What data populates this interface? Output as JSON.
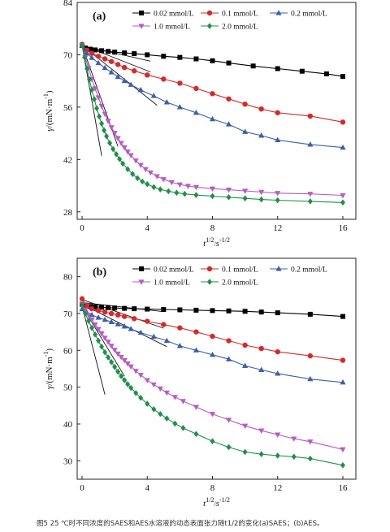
{
  "figure": {
    "caption": "图5 25 ℃时不同浓度的SAES和AES水溶液的动态表面张力随t1/2的变化(a)SAES；(b)AES。"
  },
  "chart_data": [
    {
      "type": "line",
      "panel_label": "(a)",
      "xlabel": "t1/2/s-1/2",
      "ylabel": "γ/(mN·m-1)",
      "xlim": [
        -0.3,
        16.8
      ],
      "ylim": [
        26,
        84
      ],
      "xticks": [
        0,
        4,
        8,
        12,
        16
      ],
      "yticks": [
        28,
        42,
        56,
        70,
        84
      ],
      "legend_position": "top",
      "series": [
        {
          "name": "0.02 mmol/L",
          "color": "#000000",
          "marker": "square",
          "x": [
            0,
            0.2,
            0.5,
            0.8,
            1.2,
            1.6,
            2.0,
            2.6,
            3.2,
            4.0,
            5.0,
            6.0,
            7.0,
            8.0,
            9.0,
            10.5,
            12.0,
            13.5,
            15.0,
            16.0
          ],
          "y": [
            72.5,
            71.8,
            71.5,
            71.3,
            71.1,
            70.9,
            70.7,
            70.5,
            70.3,
            70.0,
            69.6,
            69.3,
            68.9,
            68.4,
            67.8,
            67.0,
            66.3,
            65.6,
            64.9,
            64.2
          ]
        },
        {
          "name": "0.1 mmol/L",
          "color": "#d42a2a",
          "marker": "circle",
          "x": [
            0,
            0.3,
            0.6,
            1.0,
            1.4,
            1.8,
            2.2,
            2.6,
            3.2,
            4.0,
            5.0,
            6.0,
            7.0,
            8.0,
            9.0,
            10.0,
            11.0,
            12.0,
            14.0,
            16.0
          ],
          "y": [
            72.8,
            71.2,
            70.4,
            69.6,
            68.9,
            68.2,
            67.4,
            66.6,
            65.7,
            64.6,
            63.5,
            62.4,
            61.0,
            59.6,
            58.2,
            56.8,
            55.5,
            54.5,
            53.6,
            52.0
          ]
        },
        {
          "name": "0.2 mmol/L",
          "color": "#3e5fa8",
          "marker": "triangle-up",
          "x": [
            0,
            0.3,
            0.6,
            1.0,
            1.4,
            1.8,
            2.2,
            2.6,
            3.0,
            3.6,
            4.4,
            5.2,
            6.0,
            7.0,
            8.0,
            9.0,
            10.0,
            11.0,
            12.0,
            14.0,
            16.0
          ],
          "y": [
            72.5,
            70.4,
            69.2,
            67.8,
            66.5,
            65.3,
            64.1,
            63.0,
            62.0,
            60.6,
            59.0,
            57.3,
            56.0,
            54.5,
            52.8,
            51.4,
            49.4,
            48.4,
            47.2,
            46.0,
            45.2
          ]
        },
        {
          "name": "1.0 mmol/L",
          "color": "#b65cc3",
          "marker": "triangle-down",
          "x": [
            0,
            0.2,
            0.4,
            0.6,
            0.8,
            1.0,
            1.2,
            1.4,
            1.6,
            1.8,
            2.0,
            2.2,
            2.4,
            2.6,
            2.8,
            3.0,
            3.3,
            3.6,
            3.9,
            4.2,
            4.6,
            5.0,
            5.5,
            6.0,
            6.5,
            7.0,
            8.0,
            9.0,
            10.0,
            11.0,
            12.0,
            14.0,
            16.0
          ],
          "y": [
            72.5,
            69.3,
            66.4,
            63.5,
            61.0,
            58.6,
            56.3,
            54.2,
            52.3,
            50.6,
            49.1,
            47.7,
            46.4,
            45.2,
            44.1,
            43.1,
            41.7,
            40.5,
            39.4,
            38.5,
            37.5,
            36.7,
            35.9,
            35.3,
            34.9,
            34.6,
            34.2,
            33.9,
            33.6,
            33.3,
            33.0,
            32.8,
            32.4
          ]
        },
        {
          "name": "2.0 mmol/L",
          "color": "#1f8f4a",
          "marker": "diamond",
          "x": [
            0,
            0.15,
            0.3,
            0.45,
            0.6,
            0.75,
            0.9,
            1.05,
            1.2,
            1.35,
            1.5,
            1.7,
            1.9,
            2.1,
            2.3,
            2.5,
            2.8,
            3.1,
            3.4,
            3.7,
            4.0,
            4.4,
            4.8,
            5.3,
            5.8,
            6.3,
            7.0,
            8.0,
            9.0,
            10.0,
            11.0,
            12.0,
            14.0,
            16.0
          ],
          "y": [
            72.5,
            69.3,
            66.3,
            63.4,
            60.6,
            58.1,
            55.7,
            53.5,
            51.6,
            49.8,
            48.2,
            46.4,
            44.8,
            43.4,
            42.1,
            40.9,
            39.4,
            38.1,
            37.0,
            36.1,
            35.4,
            34.6,
            34.0,
            33.5,
            33.1,
            32.8,
            32.5,
            32.2,
            31.9,
            31.6,
            31.3,
            31.1,
            30.8,
            30.5
          ]
        }
      ],
      "tangent_lines": [
        {
          "x": [
            0,
            4.2
          ],
          "y": [
            72.4,
            68.3
          ]
        },
        {
          "x": [
            0,
            4.2
          ],
          "y": [
            72.6,
            65.4
          ]
        },
        {
          "x": [
            0,
            4.6
          ],
          "y": [
            72.5,
            56.5
          ]
        },
        {
          "x": [
            0,
            2.2
          ],
          "y": [
            72.5,
            45.5
          ]
        },
        {
          "x": [
            0,
            1.2
          ],
          "y": [
            72.5,
            43.0
          ]
        }
      ]
    },
    {
      "type": "line",
      "panel_label": "(b)",
      "xlabel": "t1/2/s-1/2",
      "ylabel": "γ/(mN·m-1)",
      "xlim": [
        -0.3,
        16.8
      ],
      "ylim": [
        25,
        85
      ],
      "xticks": [
        0,
        4,
        8,
        12,
        16
      ],
      "yticks": [
        30,
        40,
        50,
        60,
        70,
        80
      ],
      "legend_position": "top",
      "series": [
        {
          "name": "0.02 mmol/L",
          "color": "#000000",
          "marker": "square",
          "x": [
            0,
            0.2,
            0.5,
            0.8,
            1.2,
            1.6,
            2.0,
            2.6,
            3.2,
            4.0,
            5.0,
            6.0,
            7.0,
            8.0,
            9.0,
            10.0,
            11.0,
            12.0,
            14.0,
            16.0
          ],
          "y": [
            72.5,
            72.0,
            71.9,
            71.8,
            71.7,
            71.6,
            71.5,
            71.4,
            71.3,
            71.2,
            71.1,
            71.0,
            70.9,
            70.8,
            70.7,
            70.6,
            70.4,
            70.2,
            69.8,
            69.2
          ]
        },
        {
          "name": "0.1 mmol/L",
          "color": "#d42a2a",
          "marker": "circle",
          "x": [
            0,
            0.3,
            0.6,
            1.0,
            1.4,
            1.8,
            2.2,
            2.6,
            3.2,
            4.0,
            5.0,
            6.0,
            7.0,
            8.0,
            9.0,
            10.0,
            11.0,
            12.0,
            14.0,
            16.0
          ],
          "y": [
            74.0,
            72.0,
            71.3,
            70.8,
            70.4,
            70.0,
            69.6,
            69.2,
            68.6,
            67.9,
            67.0,
            66.1,
            65.0,
            63.8,
            62.6,
            61.4,
            60.5,
            59.6,
            58.5,
            57.3
          ]
        },
        {
          "name": "0.2 mmol/L",
          "color": "#3e5fa8",
          "marker": "triangle-up",
          "x": [
            0,
            0.3,
            0.6,
            1.0,
            1.4,
            1.8,
            2.2,
            2.6,
            3.0,
            3.6,
            4.4,
            5.2,
            6.0,
            7.0,
            8.0,
            9.0,
            10.0,
            11.0,
            12.0,
            14.0,
            16.0
          ],
          "y": [
            71.2,
            70.2,
            69.6,
            68.9,
            68.3,
            67.7,
            67.1,
            66.5,
            65.8,
            64.8,
            63.7,
            62.6,
            61.2,
            60.0,
            58.8,
            57.6,
            55.8,
            54.7,
            53.7,
            52.2,
            51.3
          ]
        },
        {
          "name": "1.0 mmol/L",
          "color": "#b65cc3",
          "marker": "triangle-down",
          "x": [
            0,
            0.2,
            0.4,
            0.6,
            0.8,
            1.0,
            1.2,
            1.4,
            1.6,
            1.8,
            2.0,
            2.2,
            2.4,
            2.6,
            2.8,
            3.0,
            3.3,
            3.6,
            4.0,
            4.4,
            4.8,
            5.2,
            5.7,
            6.2,
            7.0,
            8.0,
            9.0,
            10.0,
            11.0,
            12.0,
            13.0,
            14.0,
            16.0
          ],
          "y": [
            72.5,
            71.0,
            69.6,
            68.3,
            67.0,
            65.8,
            64.6,
            63.4,
            62.3,
            61.2,
            60.1,
            59.1,
            58.2,
            57.3,
            56.4,
            55.6,
            54.4,
            53.3,
            51.9,
            50.7,
            49.6,
            48.5,
            47.3,
            46.2,
            44.6,
            42.7,
            41.1,
            39.5,
            38.2,
            37.1,
            36.0,
            35.2,
            33.1
          ]
        },
        {
          "name": "2.0 mmol/L",
          "color": "#1f8f4a",
          "marker": "diamond",
          "x": [
            0,
            0.2,
            0.4,
            0.6,
            0.8,
            1.0,
            1.2,
            1.4,
            1.6,
            1.8,
            2.0,
            2.2,
            2.4,
            2.6,
            2.8,
            3.0,
            3.3,
            3.6,
            4.0,
            4.4,
            4.8,
            5.2,
            5.7,
            6.2,
            7.0,
            8.0,
            9.0,
            10.0,
            11.0,
            12.0,
            13.0,
            14.0,
            16.0
          ],
          "y": [
            72.2,
            70.0,
            68.0,
            66.1,
            64.3,
            62.6,
            61.0,
            59.5,
            58.1,
            56.8,
            55.5,
            54.2,
            53.0,
            51.9,
            50.8,
            49.8,
            48.4,
            47.1,
            45.5,
            44.0,
            42.7,
            41.5,
            40.1,
            38.9,
            37.3,
            35.3,
            33.7,
            32.4,
            31.8,
            31.4,
            31.1,
            30.6,
            28.8
          ]
        }
      ],
      "tangent_lines": [
        {
          "x": [
            0,
            5.0
          ],
          "y": [
            73.0,
            70.5
          ]
        },
        {
          "x": [
            0,
            5.0
          ],
          "y": [
            73.8,
            66.0
          ]
        },
        {
          "x": [
            0,
            5.2
          ],
          "y": [
            72.5,
            61.0
          ]
        },
        {
          "x": [
            0,
            2.6
          ],
          "y": [
            72.0,
            53.0
          ]
        },
        {
          "x": [
            0,
            1.4
          ],
          "y": [
            72.0,
            48.0
          ]
        }
      ]
    }
  ]
}
